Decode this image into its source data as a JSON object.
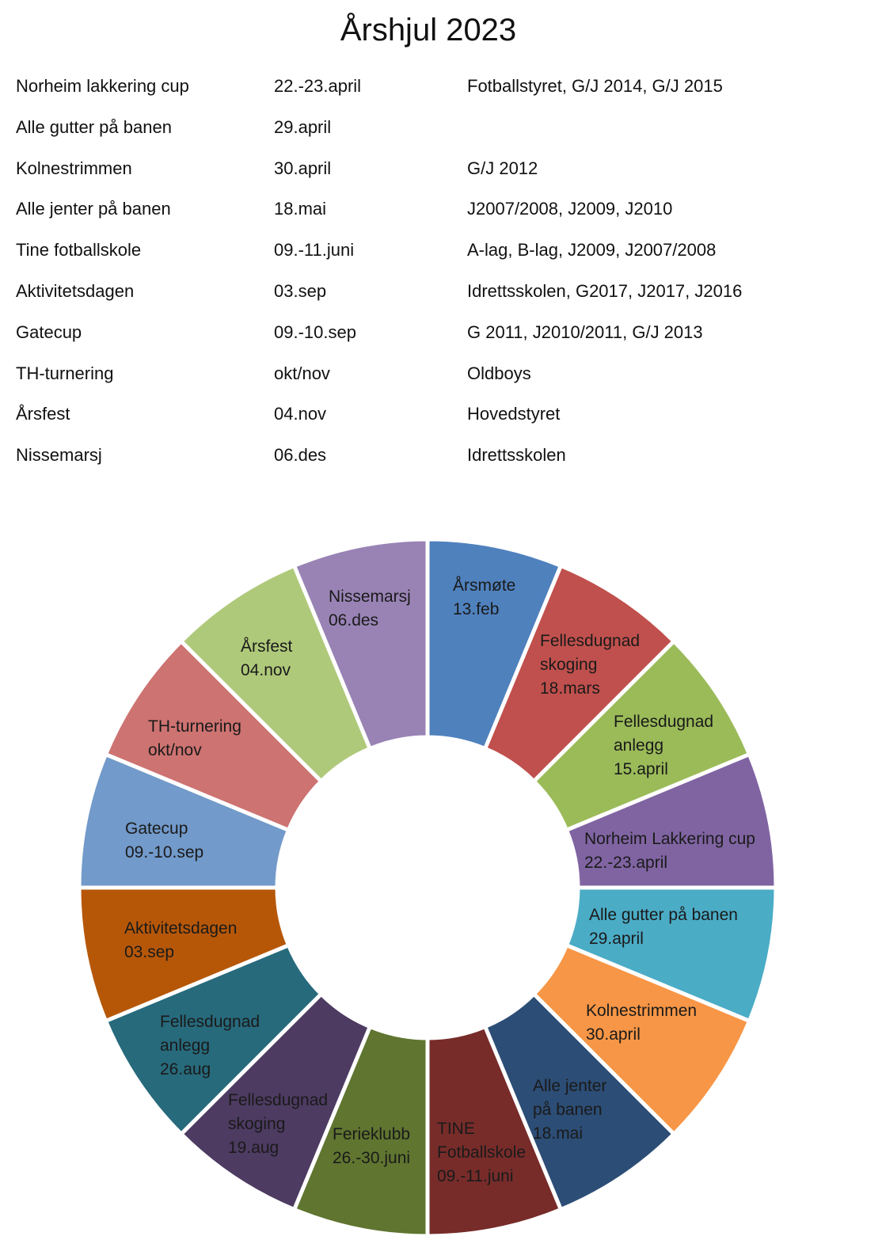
{
  "title": "Årshjul 2023",
  "events": [
    {
      "name": "Norheim lakkering cup",
      "date": "22.-23.april",
      "responsible": "Fotballstyret, G/J 2014, G/J 2015"
    },
    {
      "name": "Alle gutter på banen",
      "date": "29.april",
      "responsible": ""
    },
    {
      "name": "Kolnestrimmen",
      "date": "30.april",
      "responsible": "G/J 2012"
    },
    {
      "name": "Alle jenter på banen",
      "date": "18.mai",
      "responsible": "J2007/2008, J2009, J2010"
    },
    {
      "name": "Tine fotballskole",
      "date": "09.-11.juni",
      "responsible": "A-lag, B-lag, J2009, J2007/2008"
    },
    {
      "name": "Aktivitetsdagen",
      "date": "03.sep",
      "responsible": "Idrettsskolen, G2017, J2017, J2016"
    },
    {
      "name": "Gatecup",
      "date": "09.-10.sep",
      "responsible": "G 2011, J2010/2011, G/J 2013"
    },
    {
      "name": "TH-turnering",
      "date": "okt/nov",
      "responsible": "Oldboys"
    },
    {
      "name": "Årsfest",
      "date": "04.nov",
      "responsible": "Hovedstyret"
    },
    {
      "name": "Nissemarsj",
      "date": "06.des",
      "responsible": "Idrettsskolen"
    }
  ],
  "wheel": {
    "segments": [
      {
        "lines": [
          "Årsmøte",
          "13.feb"
        ],
        "color": "#4F81BD"
      },
      {
        "lines": [
          "Fellesdugnad",
          "skoging",
          "18.mars"
        ],
        "color": "#C0504D"
      },
      {
        "lines": [
          "Fellesdugnad",
          "anlegg",
          "15.april"
        ],
        "color": "#9BBB59"
      },
      {
        "lines": [
          "Norheim Lakkering cup",
          "22.-23.april"
        ],
        "color": "#8064A2"
      },
      {
        "lines": [
          "Alle gutter på banen",
          "29.april"
        ],
        "color": "#4BACC6"
      },
      {
        "lines": [
          "Kolnestrimmen",
          "30.april"
        ],
        "color": "#F79646"
      },
      {
        "lines": [
          "Alle jenter",
          "på banen",
          "18.mai"
        ],
        "color": "#2C4D75"
      },
      {
        "lines": [
          "TINE",
          "Fotballskole",
          "09.-11.juni"
        ],
        "color": "#772C2A"
      },
      {
        "lines": [
          "Ferieklubb",
          "26.-30.juni"
        ],
        "color": "#5F7530"
      },
      {
        "lines": [
          "Fellesdugnad",
          "skoging",
          "19.aug"
        ],
        "color": "#4D3B62"
      },
      {
        "lines": [
          "Fellesdugnad",
          "anlegg",
          "26.aug"
        ],
        "color": "#276A7C"
      },
      {
        "lines": [
          "Aktivitetsdagen",
          "03.sep"
        ],
        "color": "#B65708"
      },
      {
        "lines": [
          "Gatecup",
          "09.-10.sep"
        ],
        "color": "#729ACA"
      },
      {
        "lines": [
          "TH-turnering",
          "okt/nov"
        ],
        "color": "#CD7371"
      },
      {
        "lines": [
          "Årsfest",
          "04.nov"
        ],
        "color": "#AFC97A"
      },
      {
        "lines": [
          "Nissemarsj",
          "06.des"
        ],
        "color": "#9983B5"
      }
    ]
  }
}
